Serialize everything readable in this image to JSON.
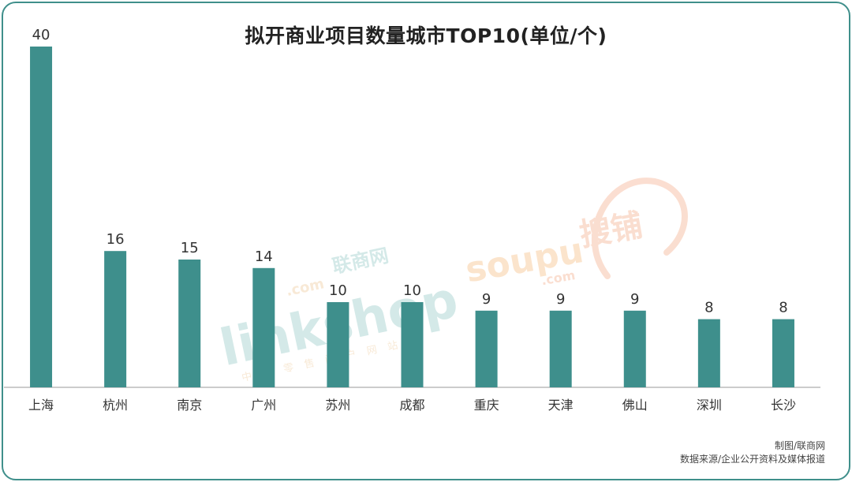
{
  "colors": {
    "bar": "#3e8f8c",
    "frame": "#3f8f8b",
    "axis": "#bbbbbb",
    "text": "#333333"
  },
  "chart_data": {
    "type": "bar",
    "title": "拟开商业项目数量城市TOP10(单位/个)",
    "categories": [
      "上海",
      "杭州",
      "南京",
      "广州",
      "苏州",
      "成都",
      "重庆",
      "天津",
      "佛山",
      "深圳",
      "长沙"
    ],
    "values": [
      40,
      16,
      15,
      14,
      10,
      10,
      9,
      9,
      9,
      8,
      8
    ],
    "ylim": [
      0,
      40
    ],
    "xlabel": "",
    "ylabel": "",
    "grid": false,
    "data_labels": true
  },
  "footer": {
    "credit": "制图/联商网",
    "source": "数据来源/企业公开资料及媒体报道"
  },
  "watermarks": {
    "linkshop_cn": "联商网",
    "linkshop_en": "linkshop",
    "linkshop_com": ".com",
    "linkshop_tagline": "中国零售门户网站",
    "soupu_en": "soupu",
    "soupu_com": ".com",
    "soupu_cn": "搜铺"
  }
}
